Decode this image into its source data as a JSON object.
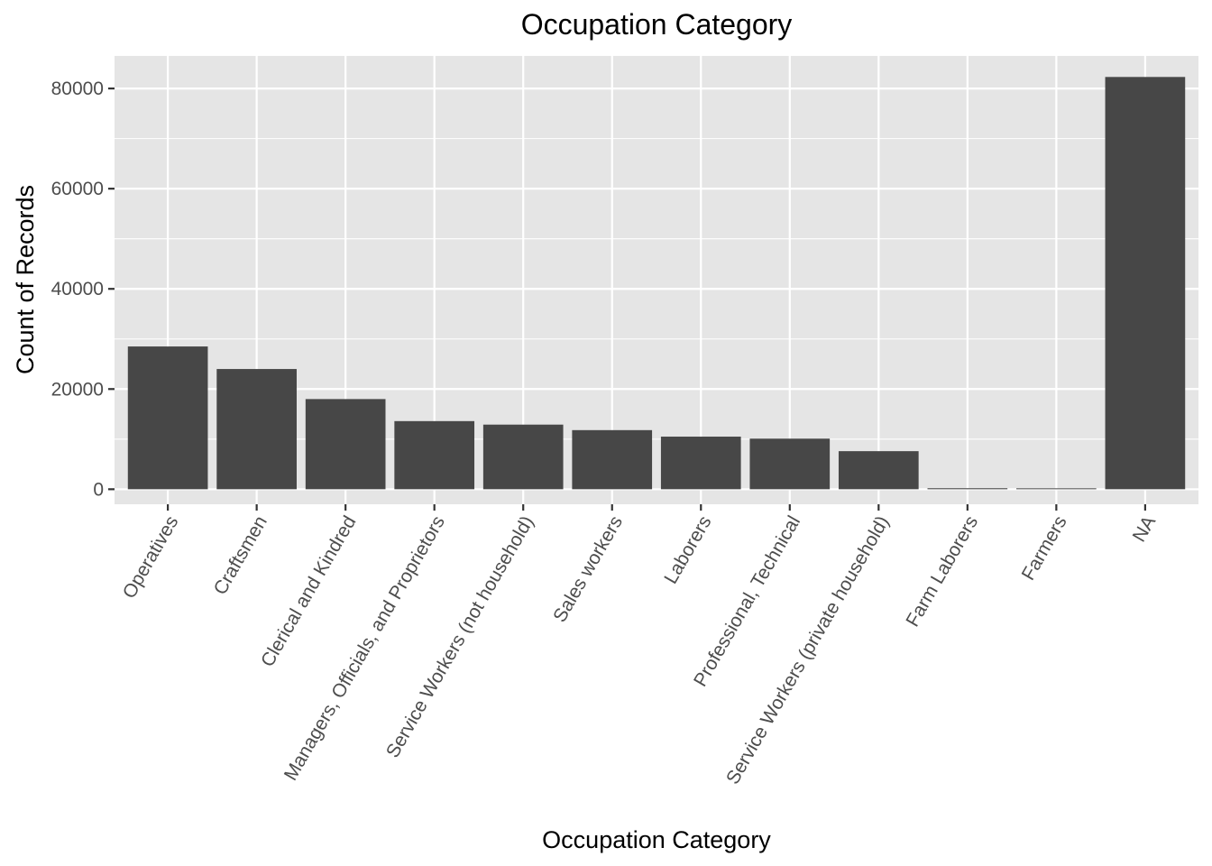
{
  "chart_data": {
    "type": "bar",
    "title": "Occupation Category",
    "xlabel": "Occupation Category",
    "ylabel": "Count of Records",
    "categories": [
      "Operatives",
      "Craftsmen",
      "Clerical and Kindred",
      "Managers, Officials, and Proprietors",
      "Service Workers (not household)",
      "Sales workers",
      "Laborers",
      "Professional, Technical",
      "Service Workers (private household)",
      "Farm Laborers",
      "Farmers",
      "NA"
    ],
    "values": [
      28500,
      24000,
      18000,
      13600,
      12900,
      11800,
      10500,
      10100,
      7600,
      200,
      180,
      82300
    ],
    "ylim": [
      -3000,
      86500
    ],
    "yticks": [
      0,
      20000,
      40000,
      60000,
      80000
    ],
    "yticks_minor": [
      10000,
      30000,
      50000,
      70000
    ],
    "grid": true,
    "bar_color": "#474747",
    "panel_color": "#e5e5e5",
    "grid_color": "#ffffff",
    "tick_color": "#333333"
  }
}
